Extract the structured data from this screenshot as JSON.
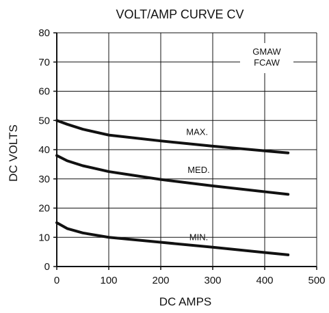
{
  "chart_data": {
    "type": "line",
    "title": "VOLT/AMP CURVE CV",
    "xlabel": "DC AMPS",
    "ylabel": "DC VOLTS",
    "xlim": [
      0,
      500
    ],
    "ylim": [
      0,
      80
    ],
    "xticks": [
      "0",
      "100",
      "200",
      "300",
      "400",
      "500"
    ],
    "yticks": [
      "0",
      "10",
      "20",
      "30",
      "40",
      "50",
      "60",
      "70",
      "80"
    ],
    "grid": true,
    "annotations": [
      "GMAW",
      "FCAW"
    ],
    "series": [
      {
        "name": "MAX.",
        "color": "#111111",
        "points": [
          {
            "x": 0,
            "y": 50
          },
          {
            "x": 20,
            "y": 48.7
          },
          {
            "x": 50,
            "y": 47
          },
          {
            "x": 100,
            "y": 45
          },
          {
            "x": 200,
            "y": 43
          },
          {
            "x": 300,
            "y": 41.2
          },
          {
            "x": 400,
            "y": 39.6
          },
          {
            "x": 445,
            "y": 38.9
          }
        ]
      },
      {
        "name": "MED.",
        "color": "#111111",
        "points": [
          {
            "x": 0,
            "y": 38
          },
          {
            "x": 20,
            "y": 36.2
          },
          {
            "x": 50,
            "y": 34.5
          },
          {
            "x": 100,
            "y": 32.5
          },
          {
            "x": 200,
            "y": 29.8
          },
          {
            "x": 300,
            "y": 27.6
          },
          {
            "x": 400,
            "y": 25.6
          },
          {
            "x": 445,
            "y": 24.7
          }
        ]
      },
      {
        "name": "MIN.",
        "color": "#111111",
        "points": [
          {
            "x": 0,
            "y": 15
          },
          {
            "x": 20,
            "y": 13
          },
          {
            "x": 50,
            "y": 11.5
          },
          {
            "x": 100,
            "y": 10
          },
          {
            "x": 200,
            "y": 8.3
          },
          {
            "x": 300,
            "y": 6.6
          },
          {
            "x": 400,
            "y": 4.8
          },
          {
            "x": 445,
            "y": 4.0
          }
        ]
      }
    ]
  }
}
